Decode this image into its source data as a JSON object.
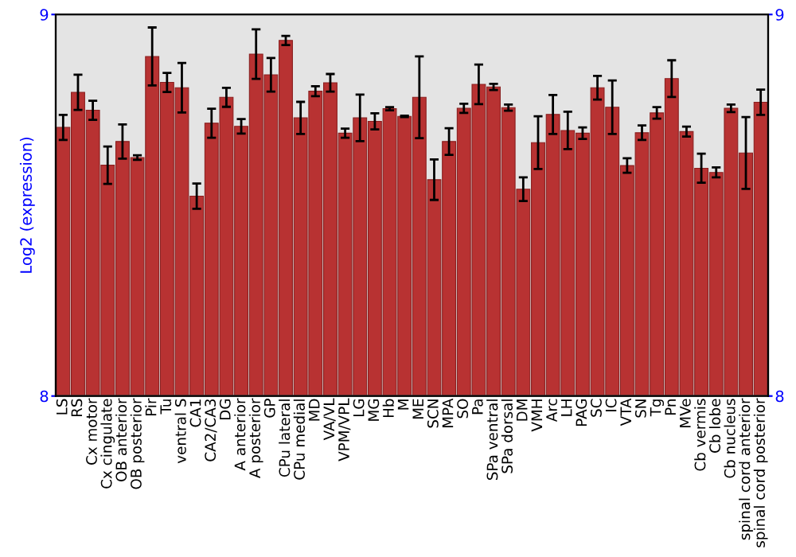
{
  "chart_data": {
    "type": "bar",
    "ylabel": "Log2 (expression)",
    "categories": [
      "LS",
      "RS",
      "Cx motor",
      "Cx cingulate",
      "OB anterior",
      "OB posterior",
      "Pir",
      "Tu",
      "ventral S",
      "CA1",
      "CA2/CA3",
      "DG",
      "A anterior",
      "A posterior",
      "GP",
      "CPu lateral",
      "CPu medial",
      "MD",
      "VA/VL",
      "VPM/VPL",
      "LG",
      "MG",
      "Hb",
      "M",
      "ME",
      "SCN",
      "MPA",
      "SO",
      "Pa",
      "SPa ventral",
      "SPa dorsal",
      "DM",
      "VMH",
      "Arc",
      "LH",
      "PAG",
      "SC",
      "IC",
      "VTA",
      "SN",
      "Tg",
      "Pn",
      "MVe",
      "Cb vermis",
      "Cb lobe",
      "Cb nucleus",
      "spinal cord anterior",
      "spinal cord posterior"
    ],
    "values": [
      8.704,
      8.796,
      8.749,
      8.605,
      8.667,
      8.625,
      8.89,
      8.822,
      8.808,
      8.524,
      8.715,
      8.783,
      8.707,
      8.896,
      8.842,
      8.932,
      8.729,
      8.799,
      8.821,
      8.689,
      8.729,
      8.72,
      8.753,
      8.733,
      8.783,
      8.567,
      8.667,
      8.754,
      8.817,
      8.81,
      8.756,
      8.542,
      8.664,
      8.738,
      8.696,
      8.689,
      8.808,
      8.757,
      8.604,
      8.69,
      8.742,
      8.832,
      8.693,
      8.597,
      8.586,
      8.754,
      8.637,
      8.77
    ],
    "errors": [
      0.033,
      0.046,
      0.025,
      0.049,
      0.045,
      0.006,
      0.076,
      0.025,
      0.065,
      0.033,
      0.038,
      0.025,
      0.019,
      0.065,
      0.044,
      0.012,
      0.042,
      0.013,
      0.023,
      0.012,
      0.061,
      0.021,
      0.004,
      0.002,
      0.107,
      0.053,
      0.035,
      0.012,
      0.052,
      0.008,
      0.008,
      0.031,
      0.069,
      0.051,
      0.049,
      0.015,
      0.031,
      0.07,
      0.019,
      0.019,
      0.015,
      0.048,
      0.013,
      0.038,
      0.013,
      0.01,
      0.094,
      0.033
    ],
    "color": "#b83232",
    "ylim": [
      8,
      9
    ],
    "yticks": [
      8,
      9
    ],
    "y2lim": [
      8,
      9
    ],
    "y2ticks": [
      8,
      9
    ],
    "grid": false
  }
}
